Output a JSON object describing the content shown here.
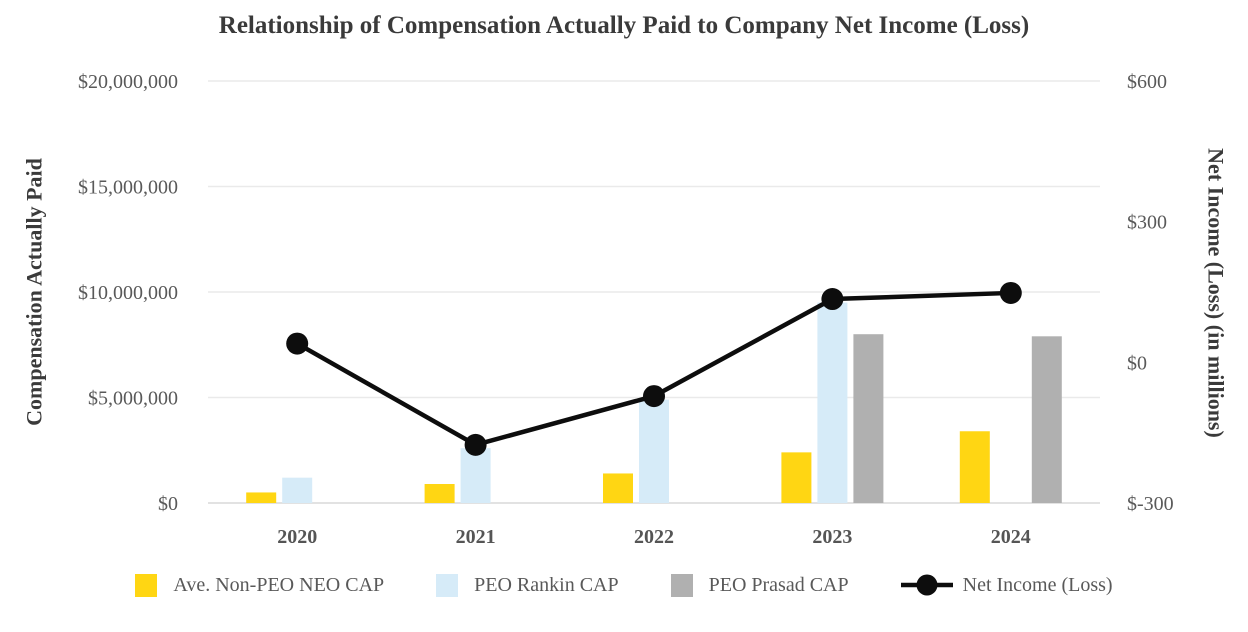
{
  "chart_data": {
    "type": "bar",
    "subtype": "grouped-bar-with-line-overlay",
    "title": "Relationship of Compensation Actually Paid to Company Net Income (Loss)",
    "categories": [
      "2020",
      "2021",
      "2022",
      "2023",
      "2024"
    ],
    "series": [
      {
        "name": "Ave. Non-PEO NEO CAP",
        "type": "bar",
        "axis": "left",
        "color": "#FFD613",
        "values": [
          500000,
          900000,
          1400000,
          2400000,
          3400000
        ]
      },
      {
        "name": "PEO Rankin CAP",
        "type": "bar",
        "axis": "left",
        "color": "#D6EBF8",
        "values": [
          1200000,
          2600000,
          4900000,
          9500000,
          null
        ]
      },
      {
        "name": "PEO Prasad CAP",
        "type": "bar",
        "axis": "left",
        "color": "#B0B0B0",
        "values": [
          null,
          null,
          null,
          8000000,
          7900000
        ]
      },
      {
        "name": "Net Income (Loss)",
        "type": "line",
        "axis": "right",
        "color": "#0d0d0d",
        "values": [
          40,
          -176,
          -72,
          135,
          148
        ]
      }
    ],
    "left_axis": {
      "title": "Compensation Actually Paid",
      "min": 0,
      "max": 20000000,
      "ticks": [
        {
          "value": 0,
          "label": "$0"
        },
        {
          "value": 5000000,
          "label": "$5,000,000"
        },
        {
          "value": 10000000,
          "label": "$10,000,000"
        },
        {
          "value": 15000000,
          "label": "$15,000,000"
        },
        {
          "value": 20000000,
          "label": "$20,000,000"
        }
      ]
    },
    "right_axis": {
      "title": "Net Income (Loss) (in millions)",
      "min": -300,
      "max": 600,
      "units": "millions of $",
      "ticks": [
        {
          "value": -300,
          "label": "$-300"
        },
        {
          "value": 0,
          "label": "$0"
        },
        {
          "value": 300,
          "label": "$300"
        },
        {
          "value": 600,
          "label": "$600"
        }
      ]
    },
    "legend_position": "bottom",
    "grid": "horizontal",
    "colors": {
      "grid": "#eaeaea",
      "baseline": "#d9d9d9",
      "tick_text": "#595959",
      "title_text": "#3a3a3a"
    }
  }
}
